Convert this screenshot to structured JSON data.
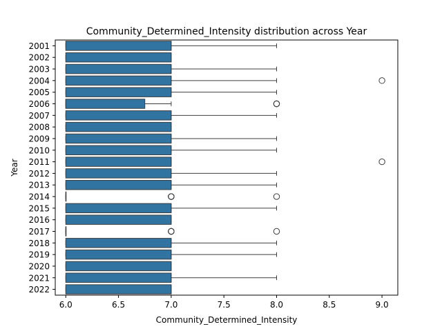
{
  "chart_data": {
    "type": "boxplot",
    "orientation": "horizontal",
    "title": "Community_Determined_Intensity distribution across Year",
    "xlabel": "Community_Determined_Intensity",
    "ylabel": "Year",
    "xlim": [
      5.9,
      9.15
    ],
    "xticks": [
      "6.0",
      "6.5",
      "7.0",
      "7.5",
      "8.0",
      "8.5",
      "9.0"
    ],
    "grid": false,
    "box_color": "#3274a1",
    "categories": [
      "2001",
      "2002",
      "2003",
      "2004",
      "2005",
      "2006",
      "2007",
      "2008",
      "2009",
      "2010",
      "2011",
      "2012",
      "2013",
      "2014",
      "2015",
      "2016",
      "2017",
      "2018",
      "2019",
      "2020",
      "2021",
      "2022"
    ],
    "boxes": [
      {
        "year": "2001",
        "whislo": 6,
        "q1": 6,
        "med": 7,
        "q3": 7,
        "whishi": 8,
        "fliers": []
      },
      {
        "year": "2002",
        "whislo": 6,
        "q1": 6,
        "med": 7,
        "q3": 7,
        "whishi": 7,
        "fliers": []
      },
      {
        "year": "2003",
        "whislo": 6,
        "q1": 6,
        "med": 7,
        "q3": 7,
        "whishi": 8,
        "fliers": []
      },
      {
        "year": "2004",
        "whislo": 6,
        "q1": 6,
        "med": 7,
        "q3": 7,
        "whishi": 8,
        "fliers": [
          9
        ]
      },
      {
        "year": "2005",
        "whislo": 6,
        "q1": 6,
        "med": 7,
        "q3": 7,
        "whishi": 8,
        "fliers": []
      },
      {
        "year": "2006",
        "whislo": 6,
        "q1": 6,
        "med": 6,
        "q3": 6.75,
        "whishi": 7,
        "fliers": [
          8,
          8,
          8
        ]
      },
      {
        "year": "2007",
        "whislo": 6,
        "q1": 6,
        "med": 7,
        "q3": 7,
        "whishi": 8,
        "fliers": []
      },
      {
        "year": "2008",
        "whislo": 6,
        "q1": 6,
        "med": 7,
        "q3": 7,
        "whishi": 7,
        "fliers": []
      },
      {
        "year": "2009",
        "whislo": 6,
        "q1": 6,
        "med": 7,
        "q3": 7,
        "whishi": 8,
        "fliers": []
      },
      {
        "year": "2010",
        "whislo": 6,
        "q1": 6,
        "med": 7,
        "q3": 7,
        "whishi": 8,
        "fliers": []
      },
      {
        "year": "2011",
        "whislo": 6,
        "q1": 6,
        "med": 7,
        "q3": 7,
        "whishi": 7,
        "fliers": [
          9
        ]
      },
      {
        "year": "2012",
        "whislo": 6,
        "q1": 6,
        "med": 7,
        "q3": 7,
        "whishi": 8,
        "fliers": []
      },
      {
        "year": "2013",
        "whislo": 6,
        "q1": 6,
        "med": 7,
        "q3": 7,
        "whishi": 8,
        "fliers": []
      },
      {
        "year": "2014",
        "whislo": 6,
        "q1": 6,
        "med": 6,
        "q3": 6,
        "whishi": 6,
        "fliers": [
          7,
          7,
          7,
          7,
          8
        ]
      },
      {
        "year": "2015",
        "whislo": 6,
        "q1": 6,
        "med": 7,
        "q3": 7,
        "whishi": 8,
        "fliers": []
      },
      {
        "year": "2016",
        "whislo": 6,
        "q1": 6,
        "med": 7,
        "q3": 7,
        "whishi": 7,
        "fliers": []
      },
      {
        "year": "2017",
        "whislo": 6,
        "q1": 6,
        "med": 6,
        "q3": 6,
        "whishi": 6,
        "fliers": [
          7,
          7,
          7,
          7,
          8
        ]
      },
      {
        "year": "2018",
        "whislo": 6,
        "q1": 6,
        "med": 7,
        "q3": 7,
        "whishi": 8,
        "fliers": []
      },
      {
        "year": "2019",
        "whislo": 6,
        "q1": 6,
        "med": 7,
        "q3": 7,
        "whishi": 8,
        "fliers": []
      },
      {
        "year": "2020",
        "whislo": 6,
        "q1": 6,
        "med": 7,
        "q3": 7,
        "whishi": 7,
        "fliers": []
      },
      {
        "year": "2021",
        "whislo": 6,
        "q1": 6,
        "med": 7,
        "q3": 7,
        "whishi": 8,
        "fliers": []
      },
      {
        "year": "2022",
        "whislo": 6,
        "q1": 6,
        "med": 7,
        "q3": 7,
        "whishi": 7,
        "fliers": []
      }
    ]
  }
}
